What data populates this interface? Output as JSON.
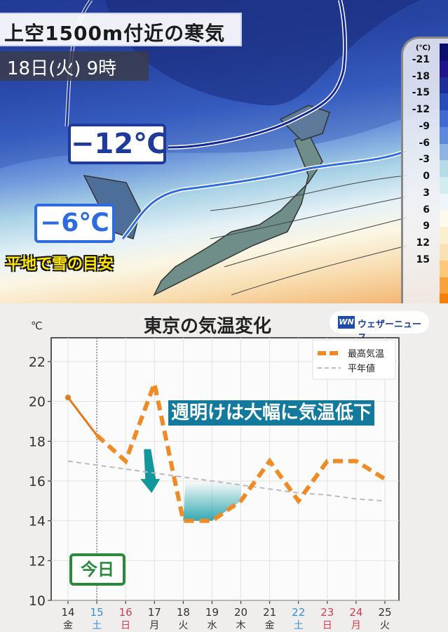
{
  "map": {
    "title": "上空1500m付近の寒気",
    "datetime": "18日(火) 9時",
    "isotherm_labels": [
      "−12℃",
      "−6℃"
    ],
    "snow_note": "平地で雪の目安",
    "legend": {
      "unit": "(℃)",
      "ticks": [
        "-21",
        "-18",
        "-15",
        "-12",
        "-9",
        "-6",
        "-3",
        "0",
        "3",
        "6",
        "9",
        "12",
        "15"
      ],
      "colors": [
        "#0a0f6e",
        "#1e148c",
        "#1c2f98",
        "#2a4cb8",
        "#3f6ad0",
        "#5d88dc",
        "#8eb4e6",
        "#b3dce6",
        "#d3ecf1",
        "#eef6fb",
        "#fdf9ec",
        "#fbf0cc",
        "#f8e2b5",
        "#fdc878",
        "#faa23c",
        "#f7800a"
      ]
    }
  },
  "chart_data": {
    "type": "line",
    "title": "東京の気温変化",
    "ylabel": "℃",
    "ylim": [
      10,
      23.2
    ],
    "yticks": [
      10,
      12,
      14,
      16,
      18,
      20,
      22
    ],
    "grid": true,
    "legend_position": "top-right",
    "categories": [
      {
        "day": "14",
        "weekday": "金",
        "color": "#333333"
      },
      {
        "day": "15",
        "weekday": "土",
        "color": "#3a8fd0"
      },
      {
        "day": "16",
        "weekday": "日",
        "color": "#d04050"
      },
      {
        "day": "17",
        "weekday": "月",
        "color": "#333333"
      },
      {
        "day": "18",
        "weekday": "火",
        "color": "#333333"
      },
      {
        "day": "19",
        "weekday": "水",
        "color": "#333333"
      },
      {
        "day": "20",
        "weekday": "木",
        "color": "#333333"
      },
      {
        "day": "21",
        "weekday": "金",
        "color": "#333333"
      },
      {
        "day": "22",
        "weekday": "土",
        "color": "#3a8fd0"
      },
      {
        "day": "23",
        "weekday": "日",
        "color": "#d04050"
      },
      {
        "day": "24",
        "weekday": "月",
        "color": "#d04050"
      },
      {
        "day": "25",
        "weekday": "火",
        "color": "#333333"
      }
    ],
    "series": [
      {
        "name": "最高気温",
        "color": "#f08a24",
        "values": [
          20.2,
          18.3,
          17.0,
          20.9,
          14.0,
          14.0,
          15.0,
          17.0,
          15.0,
          17.0,
          17.0,
          16.1
        ],
        "observed_until_index": 1
      },
      {
        "name": "平年値",
        "color": "#bbbbbb",
        "values": [
          17.0,
          16.8,
          16.6,
          16.4,
          16.2,
          16.0,
          15.8,
          15.6,
          15.4,
          15.3,
          15.1,
          15.0
        ]
      }
    ],
    "today_index": 1,
    "today_label": "今日",
    "annotation": "週明けは大幅に気温低下",
    "brand": "ウェザーニュース",
    "brand_mark": "WN"
  }
}
